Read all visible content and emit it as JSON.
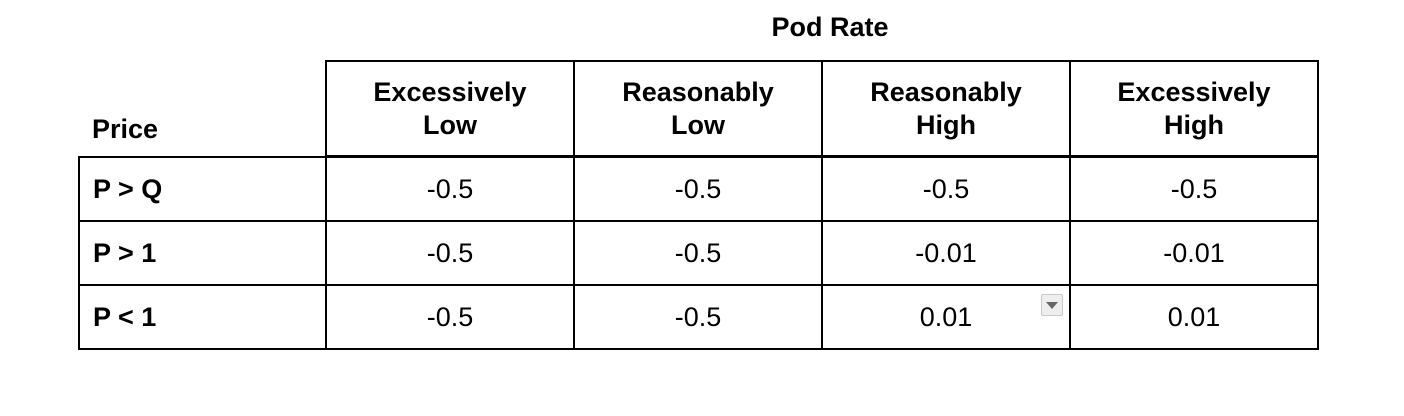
{
  "table": {
    "title": "Pod Rate",
    "row_header_label": "Price",
    "columns": [
      "Excessively\nLow",
      "Reasonably\nLow",
      "Reasonably\nHigh",
      "Excessively\nHigh"
    ],
    "rows": [
      {
        "label": "P > Q",
        "values": [
          "-0.5",
          "-0.5",
          "-0.5",
          "-0.5"
        ]
      },
      {
        "label": "P > 1",
        "values": [
          "-0.5",
          "-0.5",
          "-0.01",
          "-0.01"
        ]
      },
      {
        "label": "P < 1",
        "values": [
          "-0.5",
          "-0.5",
          "0.01",
          "0.01"
        ]
      }
    ],
    "dropdown_icon": "chevron-down-icon"
  }
}
